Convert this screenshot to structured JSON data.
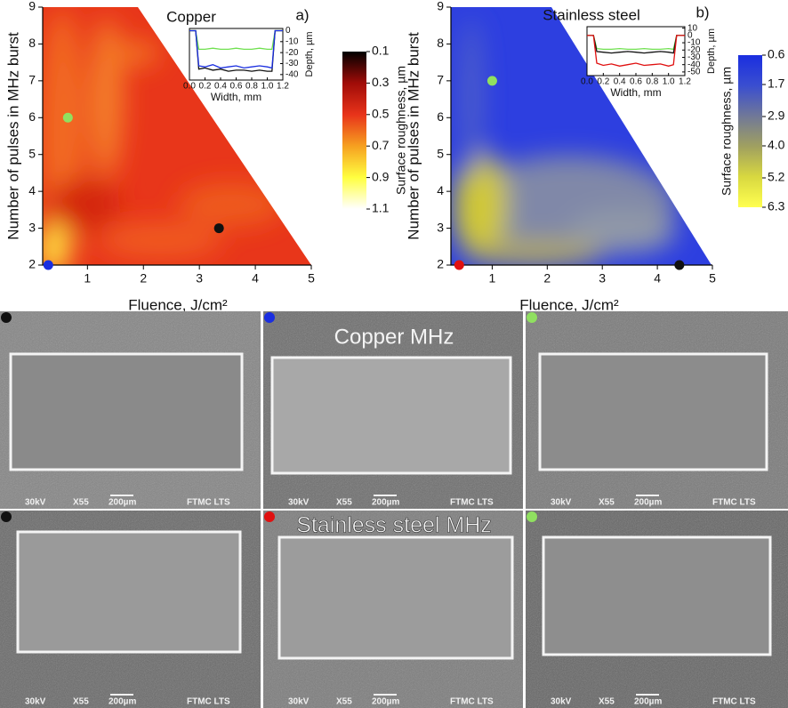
{
  "chart_data": [
    {
      "type": "contour",
      "title": "Copper",
      "panel_label": "a)",
      "xlabel": "Fluence, J/cm²",
      "ylabel": "Number of pulses in MHz burst",
      "xlim": [
        0.2,
        5
      ],
      "ylim": [
        2,
        9
      ],
      "xticks": [
        1,
        2,
        3,
        4,
        5
      ],
      "yticks": [
        2,
        3,
        4,
        5,
        6,
        7,
        8,
        9
      ],
      "colorbar": {
        "label": "Surface roughness, µm",
        "lim": [
          0.1,
          1.1
        ],
        "ticks": [
          0.1,
          0.3,
          0.5,
          0.7,
          0.9,
          1.1
        ],
        "colors": [
          "#000000",
          "#a00c08",
          "#e8331a",
          "#f6a020",
          "#ffff40",
          "#ffffff"
        ]
      },
      "points": [
        {
          "x": 0.65,
          "y": 6,
          "color": "#90e060"
        },
        {
          "x": 3.35,
          "y": 3,
          "color": "#111111"
        },
        {
          "x": 0.3,
          "y": 2,
          "color": "#1a2ee0"
        }
      ],
      "inset": {
        "type": "line",
        "xlabel": "Width, mm",
        "ylabel": "Depth, µm",
        "xlim": [
          0,
          1.2
        ],
        "ylim": [
          -45,
          2
        ],
        "xticks": [
          {
            "value": 0,
            "label": "0.0"
          },
          0.2,
          0.4,
          0.6,
          0.8,
          {
            "value": 1,
            "label": "1.0"
          },
          1.2
        ],
        "yticks": [
          0,
          -10,
          -20,
          -30,
          -40
        ],
        "x": [
          0,
          0.08,
          0.12,
          0.2,
          0.3,
          0.4,
          0.5,
          0.6,
          0.7,
          0.8,
          0.9,
          1.0,
          1.06,
          1.1,
          1.2
        ],
        "series": [
          {
            "color": "#70e050",
            "values": [
              0,
              0,
              -17,
              -17,
              -16,
              -17,
              -17,
              -16,
              -17,
              -17,
              -16,
              -17,
              -17,
              0,
              0
            ]
          },
          {
            "color": "#111111",
            "values": [
              0,
              0,
              -35,
              -34,
              -36,
              -35,
              -37,
              -36,
              -36,
              -37,
              -36,
              -37,
              -37,
              0,
              0
            ]
          },
          {
            "color": "#1a2ee0",
            "values": [
              0,
              0,
              -32,
              -33,
              -31,
              -34,
              -33,
              -32,
              -34,
              -33,
              -32,
              -33,
              -34,
              0,
              0
            ]
          }
        ]
      }
    },
    {
      "type": "contour",
      "title": "Stainless steel",
      "panel_label": "b)",
      "xlabel": "Fluence, J/cm²",
      "ylabel": "Number of pulses in MHz burst",
      "xlim": [
        0.25,
        5
      ],
      "ylim": [
        2,
        9
      ],
      "xticks": [
        1,
        2,
        3,
        4,
        5
      ],
      "yticks": [
        2,
        3,
        4,
        5,
        6,
        7,
        8,
        9
      ],
      "colorbar": {
        "label": "Surface roughness, µm",
        "lim": [
          0.6,
          6.3
        ],
        "ticks": [
          0.6,
          1.7,
          2.9,
          {
            "value": 4,
            "label": "4.0"
          },
          5.2,
          6.3
        ],
        "colors": [
          "#1a2ee0",
          "#3a4ed0",
          "#707898",
          "#a0a060",
          "#d8d840",
          "#ffff50"
        ]
      },
      "points": [
        {
          "x": 1,
          "y": 7,
          "color": "#90e060"
        },
        {
          "x": 0.4,
          "y": 2,
          "color": "#e01010"
        },
        {
          "x": 4.4,
          "y": 2,
          "color": "#111111"
        }
      ],
      "inset": {
        "type": "line",
        "xlabel": "Width, mm",
        "ylabel": "Depth, µm",
        "xlim": [
          0,
          1.2
        ],
        "ylim": [
          -55,
          12
        ],
        "xticks": [
          {
            "value": 0,
            "label": "0.0"
          },
          0.2,
          0.4,
          0.6,
          0.8,
          {
            "value": 1,
            "label": "1.0"
          },
          1.2
        ],
        "yticks": [
          10,
          0,
          -10,
          -20,
          -30,
          -40,
          -50
        ],
        "x": [
          0,
          0.08,
          0.12,
          0.2,
          0.3,
          0.4,
          0.5,
          0.6,
          0.7,
          0.8,
          0.9,
          1.0,
          1.06,
          1.1,
          1.2
        ],
        "series": [
          {
            "color": "#70e050",
            "values": [
              0,
              0,
              -18,
              -19,
              -19,
              -18,
              -19,
              -19,
              -18,
              -19,
              -19,
              -18,
              -19,
              0,
              0
            ]
          },
          {
            "color": "#111111",
            "values": [
              0,
              0,
              -22,
              -23,
              -24,
              -23,
              -22,
              -23,
              -24,
              -23,
              -22,
              -23,
              -24,
              0,
              0
            ]
          },
          {
            "color": "#e01010",
            "values": [
              0,
              0,
              -38,
              -41,
              -39,
              -42,
              -40,
              -38,
              -41,
              -40,
              -39,
              -42,
              -40,
              0,
              0
            ]
          }
        ]
      }
    }
  ],
  "sem_panels": {
    "title_top": "Copper MHz",
    "title_bottom": "Stainless steel MHz",
    "images": [
      {
        "marker": "#111111",
        "voltage": "30kV",
        "magnification": "X55",
        "scale": "200µm",
        "lab": "FTMC LTS"
      },
      {
        "marker": "#1a2ee0",
        "voltage": "30kV",
        "magnification": "X55",
        "scale": "200µm",
        "lab": "FTMC LTS"
      },
      {
        "marker": "#90e060",
        "voltage": "30kV",
        "magnification": "X55",
        "scale": "200µm",
        "lab": "FTMC LTS"
      },
      {
        "marker": "#111111",
        "voltage": "30kV",
        "magnification": "X55",
        "scale": "200µm",
        "lab": "FTMC LTS"
      },
      {
        "marker": "#e01010",
        "voltage": "30kV",
        "magnification": "X55",
        "scale": "200µm",
        "lab": "FTMC LTS"
      },
      {
        "marker": "#90e060",
        "voltage": "30kV",
        "magnification": "X55",
        "scale": "200µm",
        "lab": "FTMC LTS"
      }
    ]
  }
}
